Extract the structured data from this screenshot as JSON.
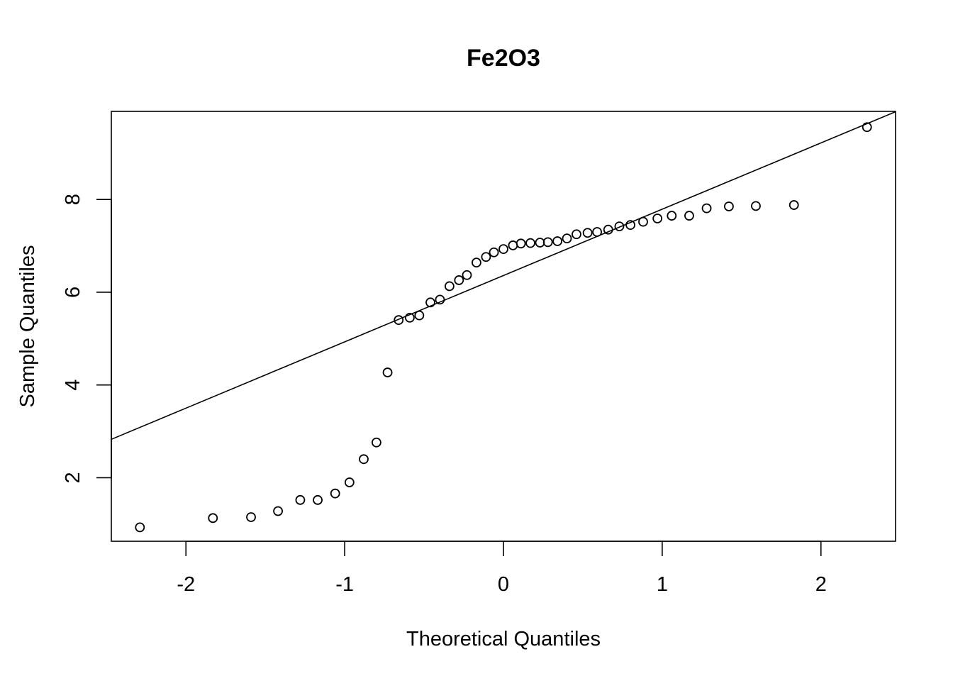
{
  "chart_data": {
    "type": "scatter",
    "title": "Fe2O3",
    "xlabel": "Theoretical Quantiles",
    "ylabel": "Sample Quantiles",
    "xlim": [
      -2.47,
      2.47
    ],
    "ylim": [
      0.63,
      9.9
    ],
    "x_ticks": [
      -2,
      -1,
      0,
      1,
      2
    ],
    "x_tick_labels": [
      "-2",
      "-1",
      "0",
      "1",
      "2"
    ],
    "y_ticks": [
      2,
      4,
      6,
      8
    ],
    "y_tick_labels": [
      "2",
      "4",
      "6",
      "8"
    ],
    "grid": false,
    "reference_line": {
      "intercept": 6.36,
      "slope": 1.43
    },
    "points": [
      {
        "x": -2.29,
        "y": 0.93
      },
      {
        "x": -1.83,
        "y": 1.13
      },
      {
        "x": -1.59,
        "y": 1.15
      },
      {
        "x": -1.42,
        "y": 1.28
      },
      {
        "x": -1.28,
        "y": 1.52
      },
      {
        "x": -1.17,
        "y": 1.52
      },
      {
        "x": -1.06,
        "y": 1.66
      },
      {
        "x": -0.97,
        "y": 1.9
      },
      {
        "x": -0.88,
        "y": 2.4
      },
      {
        "x": -0.8,
        "y": 2.76
      },
      {
        "x": -0.73,
        "y": 4.27
      },
      {
        "x": -0.66,
        "y": 5.4
      },
      {
        "x": -0.59,
        "y": 5.45
      },
      {
        "x": -0.53,
        "y": 5.5
      },
      {
        "x": -0.46,
        "y": 5.78
      },
      {
        "x": -0.4,
        "y": 5.84
      },
      {
        "x": -0.34,
        "y": 6.13
      },
      {
        "x": -0.28,
        "y": 6.26
      },
      {
        "x": -0.23,
        "y": 6.37
      },
      {
        "x": -0.17,
        "y": 6.64
      },
      {
        "x": -0.11,
        "y": 6.76
      },
      {
        "x": -0.06,
        "y": 6.86
      },
      {
        "x": 0.0,
        "y": 6.93
      },
      {
        "x": 0.06,
        "y": 7.01
      },
      {
        "x": 0.11,
        "y": 7.05
      },
      {
        "x": 0.17,
        "y": 7.06
      },
      {
        "x": 0.23,
        "y": 7.07
      },
      {
        "x": 0.28,
        "y": 7.08
      },
      {
        "x": 0.34,
        "y": 7.1
      },
      {
        "x": 0.4,
        "y": 7.16
      },
      {
        "x": 0.46,
        "y": 7.25
      },
      {
        "x": 0.53,
        "y": 7.28
      },
      {
        "x": 0.59,
        "y": 7.3
      },
      {
        "x": 0.66,
        "y": 7.35
      },
      {
        "x": 0.73,
        "y": 7.42
      },
      {
        "x": 0.8,
        "y": 7.45
      },
      {
        "x": 0.88,
        "y": 7.52
      },
      {
        "x": 0.97,
        "y": 7.59
      },
      {
        "x": 1.06,
        "y": 7.65
      },
      {
        "x": 1.17,
        "y": 7.65
      },
      {
        "x": 1.28,
        "y": 7.81
      },
      {
        "x": 1.42,
        "y": 7.85
      },
      {
        "x": 1.59,
        "y": 7.86
      },
      {
        "x": 1.83,
        "y": 7.88
      },
      {
        "x": 2.29,
        "y": 9.56
      }
    ]
  }
}
